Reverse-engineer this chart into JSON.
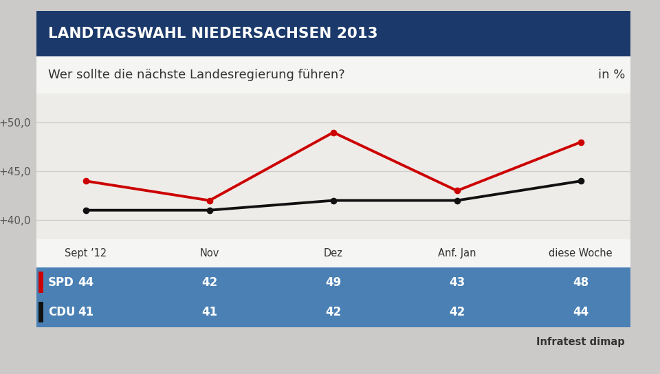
{
  "title": "LANDTAGSWAHL NIEDERSACHSEN 2013",
  "subtitle": "Wer sollte die nächste Landesregierung führen?",
  "unit": "in %",
  "categories": [
    "Sept ’12",
    "Nov",
    "Dez",
    "Anf. Jan",
    "diese Woche"
  ],
  "spd_values": [
    44,
    42,
    49,
    43,
    48
  ],
  "cdu_values": [
    41,
    41,
    42,
    42,
    44
  ],
  "spd_color": "#cc0000",
  "cdu_color": "#111111",
  "ylim": [
    38.0,
    53.0
  ],
  "yticks": [
    40.0,
    45.0,
    50.0
  ],
  "ytick_labels": [
    "+40,0",
    "+45,0",
    "+50,0"
  ],
  "header_bg": "#1b3a6b",
  "header_text_color": "#ffffff",
  "subtitle_bg": "#f5f5f3",
  "subtitle_text_color": "#333333",
  "chart_bg": "#eeece8",
  "table_bg": "#4a80b4",
  "table_text_color": "#ffffff",
  "table_header_bg": "#f5f5f3",
  "table_header_text_color": "#333333",
  "source_text": "Infratest dimap",
  "outer_bg": "#cccac8",
  "grid_color": "#d0cecc"
}
